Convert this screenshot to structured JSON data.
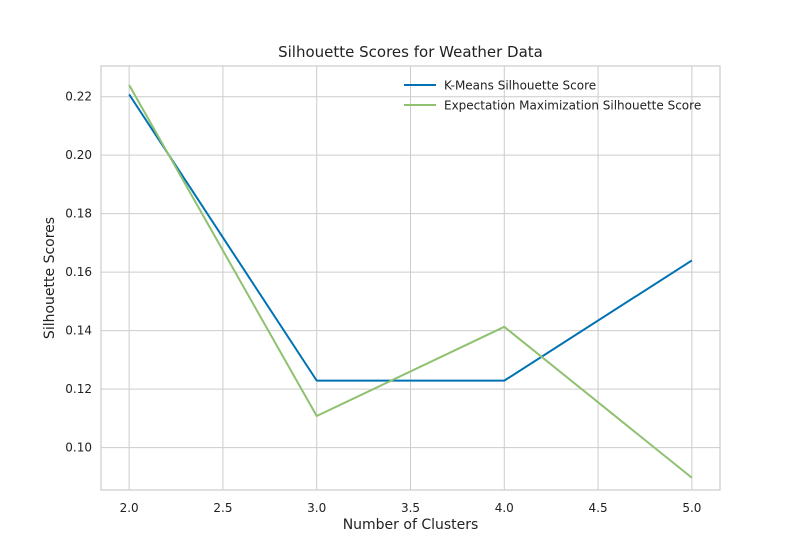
{
  "chart_data": {
    "type": "line",
    "title": "Silhouette Scores for Weather Data",
    "xlabel": "Number of Clusters",
    "ylabel": "Silhouette Scores",
    "x": [
      2.0,
      3.0,
      4.0,
      5.0
    ],
    "xlim": [
      1.85,
      5.15
    ],
    "ylim": [
      0.0855,
      0.2305
    ],
    "xticks": [
      "2.0",
      "2.5",
      "3.0",
      "3.5",
      "4.0",
      "4.5",
      "5.0"
    ],
    "yticks": [
      "0.10",
      "0.12",
      "0.14",
      "0.16",
      "0.18",
      "0.20",
      "0.22"
    ],
    "grid": true,
    "legend_position": "top-right",
    "series": [
      {
        "name": "K-Means Silhouette Score",
        "color": "#0072b2",
        "values": [
          0.2208,
          0.1229,
          0.1229,
          0.164
        ]
      },
      {
        "name": "Expectation Maximization Silhouette Score",
        "color": "#8fc170",
        "values": [
          0.224,
          0.1108,
          0.1413,
          0.0897
        ]
      }
    ]
  }
}
